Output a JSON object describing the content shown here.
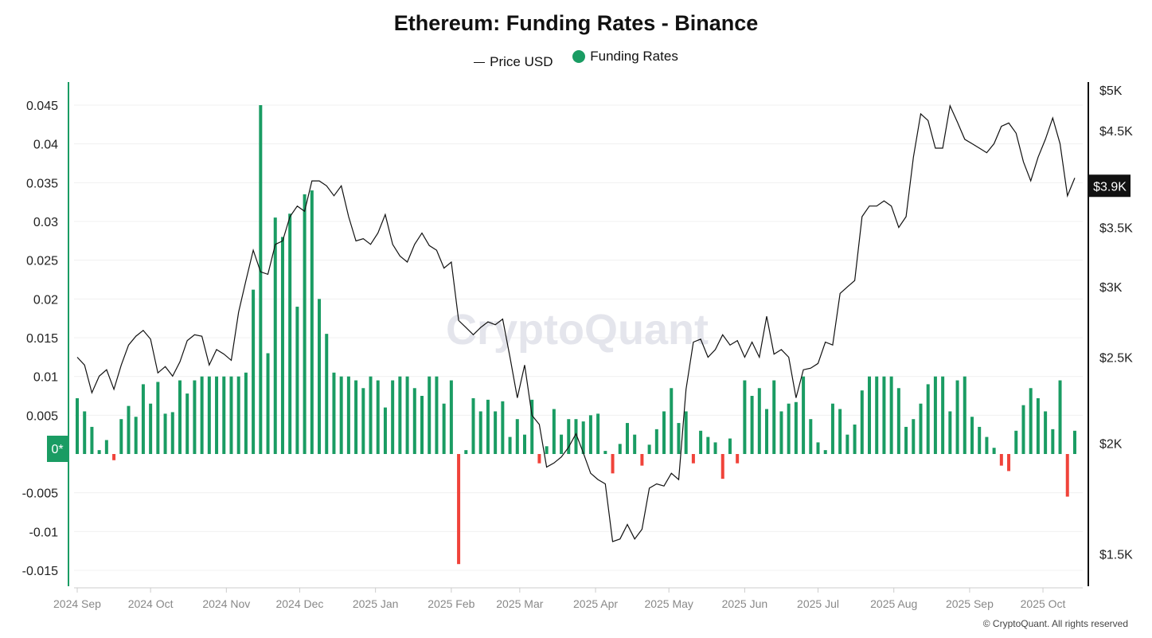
{
  "chart_data": {
    "type": "bar+line",
    "title": "Ethereum: Funding Rates - Binance",
    "legend": {
      "position": "top-center",
      "items": [
        "Price USD",
        "Funding Rates"
      ]
    },
    "colors": {
      "funding_positive": "#1a9c63",
      "funding_negative": "#f0433a",
      "price": "#111111",
      "left_axis": "#1a9c63"
    },
    "left_axis": {
      "ticks": [
        "0.045",
        "0.04",
        "0.035",
        "0.03",
        "0.025",
        "0.02",
        "0.015",
        "0.01",
        "0.005",
        "0*",
        "-0.005",
        "-0.01",
        "-0.015"
      ],
      "range": [
        -0.0165,
        0.0475
      ],
      "zero_label": "0*"
    },
    "right_axis": {
      "scale": "log",
      "ticks": [
        "$5K",
        "$4.5K",
        "$3.5K",
        "$3K",
        "$2.5K",
        "$2K",
        "$1.5K"
      ],
      "tick_values": [
        5000,
        4500,
        3500,
        3000,
        2500,
        2000,
        1500
      ],
      "current_label": "$3.9K",
      "current_value": 3900
    },
    "x_ticks": [
      "2024 Sep",
      "2024 Oct",
      "2024 Nov",
      "2024 Dec",
      "2025 Jan",
      "2025 Feb",
      "2025 Mar",
      "2025 Apr",
      "2025 May",
      "2025 Jun",
      "2025 Jul",
      "2025 Aug",
      "2025 Sep",
      "2025 Oct"
    ],
    "x_tick_dates": [
      "2024-09-01",
      "2024-10-01",
      "2024-11-01",
      "2024-12-01",
      "2025-01-01",
      "2025-02-01",
      "2025-03-01",
      "2025-04-01",
      "2025-05-01",
      "2025-06-01",
      "2025-07-01",
      "2025-08-01",
      "2025-09-01",
      "2025-10-01"
    ],
    "grid": true,
    "x": [
      "2024-09-01",
      "2024-09-04",
      "2024-09-07",
      "2024-09-10",
      "2024-09-13",
      "2024-09-16",
      "2024-09-19",
      "2024-09-22",
      "2024-09-25",
      "2024-09-28",
      "2024-10-01",
      "2024-10-04",
      "2024-10-07",
      "2024-10-10",
      "2024-10-13",
      "2024-10-16",
      "2024-10-19",
      "2024-10-22",
      "2024-10-25",
      "2024-10-28",
      "2024-10-31",
      "2024-11-03",
      "2024-11-06",
      "2024-11-09",
      "2024-11-12",
      "2024-11-15",
      "2024-11-18",
      "2024-11-21",
      "2024-11-24",
      "2024-11-27",
      "2024-11-30",
      "2024-12-03",
      "2024-12-06",
      "2024-12-09",
      "2024-12-12",
      "2024-12-15",
      "2024-12-18",
      "2024-12-21",
      "2024-12-24",
      "2024-12-27",
      "2024-12-30",
      "2025-01-02",
      "2025-01-05",
      "2025-01-08",
      "2025-01-11",
      "2025-01-14",
      "2025-01-17",
      "2025-01-20",
      "2025-01-23",
      "2025-01-26",
      "2025-01-29",
      "2025-02-01",
      "2025-02-04",
      "2025-02-07",
      "2025-02-10",
      "2025-02-13",
      "2025-02-16",
      "2025-02-19",
      "2025-02-22",
      "2025-02-25",
      "2025-02-28",
      "2025-03-03",
      "2025-03-06",
      "2025-03-09",
      "2025-03-12",
      "2025-03-15",
      "2025-03-18",
      "2025-03-21",
      "2025-03-24",
      "2025-03-27",
      "2025-03-30",
      "2025-04-02",
      "2025-04-05",
      "2025-04-08",
      "2025-04-11",
      "2025-04-14",
      "2025-04-17",
      "2025-04-20",
      "2025-04-23",
      "2025-04-26",
      "2025-04-29",
      "2025-05-02",
      "2025-05-05",
      "2025-05-08",
      "2025-05-11",
      "2025-05-14",
      "2025-05-17",
      "2025-05-20",
      "2025-05-23",
      "2025-05-26",
      "2025-05-29",
      "2025-06-01",
      "2025-06-04",
      "2025-06-07",
      "2025-06-10",
      "2025-06-13",
      "2025-06-16",
      "2025-06-19",
      "2025-06-22",
      "2025-06-25",
      "2025-06-28",
      "2025-07-01",
      "2025-07-04",
      "2025-07-07",
      "2025-07-10",
      "2025-07-13",
      "2025-07-16",
      "2025-07-19",
      "2025-07-22",
      "2025-07-25",
      "2025-07-28",
      "2025-07-31",
      "2025-08-03",
      "2025-08-06",
      "2025-08-09",
      "2025-08-12",
      "2025-08-15",
      "2025-08-18",
      "2025-08-21",
      "2025-08-24",
      "2025-08-27",
      "2025-08-30",
      "2025-09-02",
      "2025-09-05",
      "2025-09-08",
      "2025-09-11",
      "2025-09-14",
      "2025-09-17",
      "2025-09-20",
      "2025-09-23",
      "2025-09-26",
      "2025-09-29",
      "2025-10-02",
      "2025-10-05",
      "2025-10-08",
      "2025-10-11",
      "2025-10-14"
    ],
    "series": [
      {
        "name": "Price USD",
        "type": "line",
        "axis": "right",
        "values": [
          2500,
          2450,
          2280,
          2380,
          2420,
          2300,
          2450,
          2580,
          2640,
          2680,
          2620,
          2400,
          2440,
          2380,
          2470,
          2610,
          2650,
          2640,
          2450,
          2550,
          2520,
          2480,
          2810,
          3050,
          3300,
          3120,
          3100,
          3350,
          3380,
          3600,
          3700,
          3650,
          3950,
          3950,
          3900,
          3800,
          3900,
          3600,
          3380,
          3400,
          3350,
          3450,
          3620,
          3350,
          3250,
          3200,
          3350,
          3450,
          3340,
          3300,
          3150,
          3200,
          2750,
          2700,
          2650,
          2700,
          2740,
          2720,
          2760,
          2500,
          2250,
          2450,
          2150,
          2100,
          1880,
          1900,
          1930,
          1980,
          2050,
          1950,
          1850,
          1820,
          1800,
          1550,
          1560,
          1620,
          1560,
          1600,
          1780,
          1800,
          1790,
          1850,
          1820,
          2300,
          2600,
          2620,
          2500,
          2550,
          2650,
          2580,
          2610,
          2500,
          2600,
          2500,
          2780,
          2520,
          2550,
          2500,
          2250,
          2420,
          2430,
          2460,
          2600,
          2580,
          2950,
          3000,
          3050,
          3600,
          3700,
          3700,
          3750,
          3700,
          3500,
          3600,
          4200,
          4700,
          4620,
          4300,
          4300,
          4800,
          4600,
          4400,
          4350,
          4300,
          4250,
          4350,
          4550,
          4590,
          4470,
          4150,
          3950,
          4200,
          4400,
          4650,
          4350,
          3800,
          3980
        ]
      },
      {
        "name": "Funding Rates",
        "type": "bar",
        "axis": "left",
        "values": [
          0.0072,
          0.0055,
          0.0035,
          0.0005,
          0.0018,
          -0.0008,
          0.0045,
          0.0062,
          0.0048,
          0.009,
          0.0065,
          0.0093,
          0.0052,
          0.0054,
          0.0095,
          0.0078,
          0.0095,
          0.01,
          0.01,
          0.01,
          0.01,
          0.01,
          0.01,
          0.0105,
          0.0212,
          0.045,
          0.013,
          0.0305,
          0.028,
          0.031,
          0.019,
          0.0335,
          0.034,
          0.02,
          0.0155,
          0.0105,
          0.01,
          0.01,
          0.0095,
          0.0085,
          0.01,
          0.0095,
          0.006,
          0.0095,
          0.01,
          0.01,
          0.0085,
          0.0075,
          0.01,
          0.01,
          0.0065,
          0.0095,
          -0.0142,
          0.0005,
          0.0072,
          0.0055,
          0.007,
          0.0055,
          0.0068,
          0.0022,
          0.0045,
          0.0025,
          0.007,
          -0.0012,
          0.001,
          0.0058,
          0.0025,
          0.0045,
          0.0045,
          0.0042,
          0.005,
          0.0052,
          0.0004,
          -0.0025,
          0.0013,
          0.004,
          0.0025,
          -0.0015,
          0.0012,
          0.0032,
          0.0055,
          0.0085,
          0.004,
          0.0055,
          -0.0012,
          0.003,
          0.0022,
          0.0015,
          -0.0032,
          0.002,
          -0.0012,
          0.0095,
          0.0075,
          0.0085,
          0.0058,
          0.0095,
          0.0055,
          0.0065,
          0.0067,
          0.01,
          0.0045,
          0.0015,
          0.0005,
          0.0065,
          0.0058,
          0.0025,
          0.0038,
          0.0082,
          0.01,
          0.01,
          0.01,
          0.01,
          0.0085,
          0.0035,
          0.0045,
          0.0065,
          0.009,
          0.01,
          0.01,
          0.0055,
          0.0095,
          0.01,
          0.0048,
          0.0035,
          0.0022,
          0.0008,
          -0.0015,
          -0.0022,
          0.003,
          0.0063,
          0.0085,
          0.0072,
          0.0055,
          0.0032,
          0.0095,
          -0.0055,
          0.003
        ]
      }
    ]
  },
  "watermark": "CryptoQuant",
  "copyright": "© CryptoQuant. All rights reserved"
}
